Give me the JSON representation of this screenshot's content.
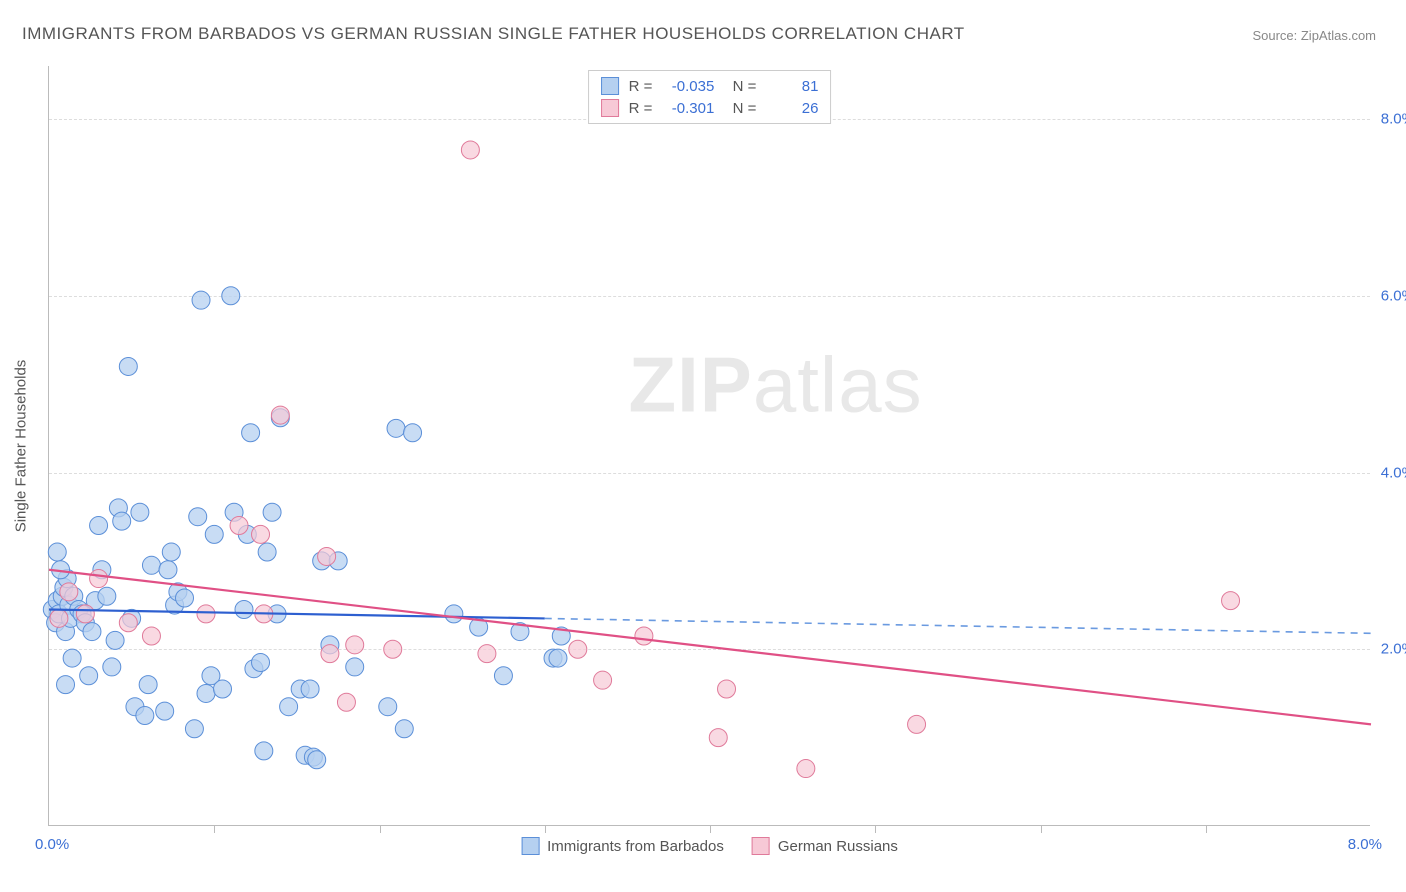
{
  "title": "IMMIGRANTS FROM BARBADOS VS GERMAN RUSSIAN SINGLE FATHER HOUSEHOLDS CORRELATION CHART",
  "source": "Source: ZipAtlas.com",
  "watermark_bold": "ZIP",
  "watermark_rest": "atlas",
  "y_label": "Single Father Households",
  "chart": {
    "type": "scatter",
    "xlim": [
      0,
      8.0
    ],
    "ylim": [
      0,
      8.6
    ],
    "xticks_minor": [
      1,
      2,
      3,
      4,
      5,
      6,
      7
    ],
    "yticks": [
      2.0,
      4.0,
      6.0,
      8.0
    ],
    "ytick_labels": [
      "2.0%",
      "4.0%",
      "6.0%",
      "8.0%"
    ],
    "x_min_label": "0.0%",
    "x_max_label": "8.0%",
    "grid_color": "#dddddd",
    "axis_color": "#bbbbbb",
    "background_color": "#ffffff",
    "series": [
      {
        "name": "Immigrants from Barbados",
        "color_fill": "#b5d0f0",
        "color_stroke": "#5b8fd8",
        "marker_radius": 9,
        "marker_opacity": 0.75,
        "R": "-0.035",
        "N": "81",
        "trend": {
          "y_at_x0": 2.45,
          "y_at_xmax": 2.18,
          "solid_until_x": 3.0,
          "color": "#2d5fd0",
          "color_dash": "#6a9ae0"
        },
        "points": [
          [
            0.02,
            2.45
          ],
          [
            0.04,
            2.3
          ],
          [
            0.05,
            2.55
          ],
          [
            0.06,
            2.4
          ],
          [
            0.08,
            2.6
          ],
          [
            0.09,
            2.7
          ],
          [
            0.1,
            2.2
          ],
          [
            0.11,
            2.8
          ],
          [
            0.12,
            2.5
          ],
          [
            0.13,
            2.35
          ],
          [
            0.05,
            3.1
          ],
          [
            0.07,
            2.9
          ],
          [
            0.1,
            1.6
          ],
          [
            0.14,
            1.9
          ],
          [
            0.15,
            2.6
          ],
          [
            0.18,
            2.45
          ],
          [
            0.2,
            2.4
          ],
          [
            0.22,
            2.3
          ],
          [
            0.24,
            1.7
          ],
          [
            0.26,
            2.2
          ],
          [
            0.28,
            2.55
          ],
          [
            0.3,
            3.4
          ],
          [
            0.32,
            2.9
          ],
          [
            0.35,
            2.6
          ],
          [
            0.38,
            1.8
          ],
          [
            0.4,
            2.1
          ],
          [
            0.42,
            3.6
          ],
          [
            0.44,
            3.45
          ],
          [
            0.48,
            5.2
          ],
          [
            0.5,
            2.35
          ],
          [
            0.52,
            1.35
          ],
          [
            0.55,
            3.55
          ],
          [
            0.58,
            1.25
          ],
          [
            0.6,
            1.6
          ],
          [
            0.62,
            2.95
          ],
          [
            0.7,
            1.3
          ],
          [
            0.72,
            2.9
          ],
          [
            0.74,
            3.1
          ],
          [
            0.76,
            2.5
          ],
          [
            0.78,
            2.65
          ],
          [
            0.82,
            2.58
          ],
          [
            0.88,
            1.1
          ],
          [
            0.9,
            3.5
          ],
          [
            0.92,
            5.95
          ],
          [
            0.95,
            1.5
          ],
          [
            0.98,
            1.7
          ],
          [
            1.0,
            3.3
          ],
          [
            1.05,
            1.55
          ],
          [
            1.1,
            6.0
          ],
          [
            1.12,
            3.55
          ],
          [
            1.18,
            2.45
          ],
          [
            1.2,
            3.3
          ],
          [
            1.22,
            4.45
          ],
          [
            1.24,
            1.78
          ],
          [
            1.28,
            1.85
          ],
          [
            1.3,
            0.85
          ],
          [
            1.32,
            3.1
          ],
          [
            1.35,
            3.55
          ],
          [
            1.38,
            2.4
          ],
          [
            1.4,
            4.62
          ],
          [
            1.45,
            1.35
          ],
          [
            1.52,
            1.55
          ],
          [
            1.55,
            0.8
          ],
          [
            1.58,
            1.55
          ],
          [
            1.6,
            0.78
          ],
          [
            1.62,
            0.75
          ],
          [
            1.65,
            3.0
          ],
          [
            1.7,
            2.05
          ],
          [
            1.75,
            3.0
          ],
          [
            1.85,
            1.8
          ],
          [
            2.05,
            1.35
          ],
          [
            2.1,
            4.5
          ],
          [
            2.15,
            1.1
          ],
          [
            2.2,
            4.45
          ],
          [
            2.45,
            2.4
          ],
          [
            2.6,
            2.25
          ],
          [
            2.75,
            1.7
          ],
          [
            2.85,
            2.2
          ],
          [
            3.05,
            1.9
          ],
          [
            3.08,
            1.9
          ],
          [
            3.1,
            2.15
          ]
        ]
      },
      {
        "name": "German Russians",
        "color_fill": "#f7c9d6",
        "color_stroke": "#e07a9a",
        "marker_radius": 9,
        "marker_opacity": 0.7,
        "R": "-0.301",
        "N": "26",
        "trend": {
          "y_at_x0": 2.9,
          "y_at_xmax": 1.15,
          "solid_until_x": 8.0,
          "color": "#e05085",
          "color_dash": "#e05085"
        },
        "points": [
          [
            0.06,
            2.35
          ],
          [
            0.12,
            2.65
          ],
          [
            0.22,
            2.4
          ],
          [
            0.3,
            2.8
          ],
          [
            0.48,
            2.3
          ],
          [
            0.62,
            2.15
          ],
          [
            0.95,
            2.4
          ],
          [
            1.15,
            3.4
          ],
          [
            1.28,
            3.3
          ],
          [
            1.3,
            2.4
          ],
          [
            1.4,
            4.65
          ],
          [
            1.68,
            3.05
          ],
          [
            1.7,
            1.95
          ],
          [
            1.8,
            1.4
          ],
          [
            1.85,
            2.05
          ],
          [
            2.08,
            2.0
          ],
          [
            2.55,
            7.65
          ],
          [
            2.65,
            1.95
          ],
          [
            3.2,
            2.0
          ],
          [
            3.35,
            1.65
          ],
          [
            3.6,
            2.15
          ],
          [
            4.05,
            1.0
          ],
          [
            4.1,
            1.55
          ],
          [
            4.58,
            0.65
          ],
          [
            5.25,
            1.15
          ],
          [
            7.15,
            2.55
          ]
        ]
      }
    ]
  },
  "legend_bottom": [
    {
      "swatch": "blue",
      "label": "Immigrants from Barbados"
    },
    {
      "swatch": "pink",
      "label": "German Russians"
    }
  ]
}
